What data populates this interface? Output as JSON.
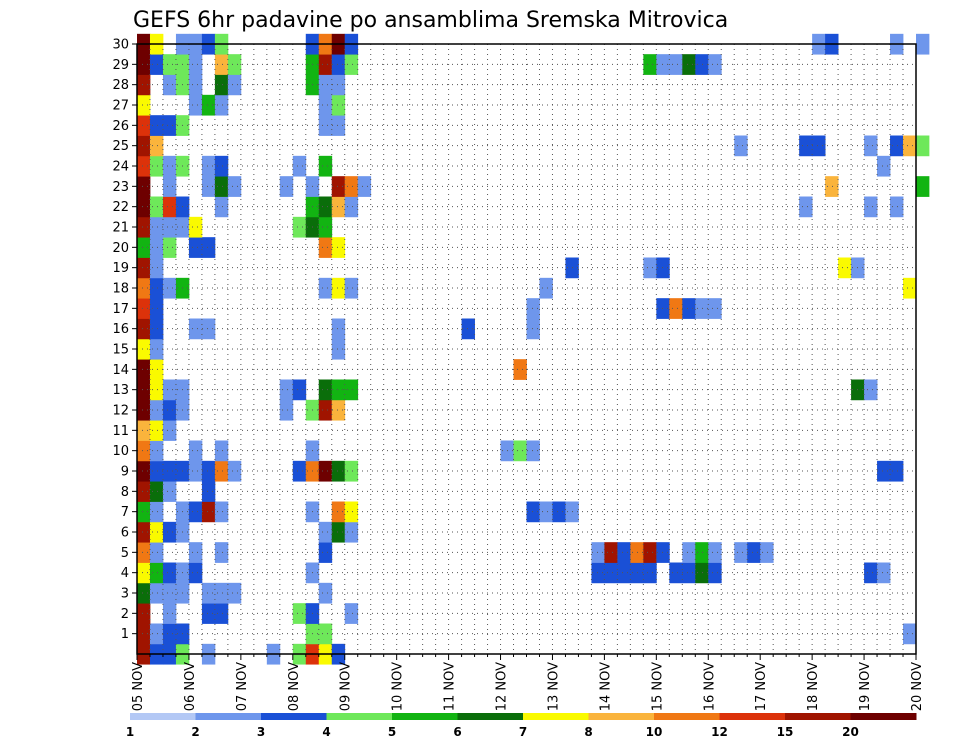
{
  "chart_data": {
    "type": "heatmap",
    "title": "GEFS 6hr padavine po ansamblima Sremska Mitrovica",
    "xlabel": "",
    "ylabel": "",
    "x_tick_labels": [
      "05 NOV",
      "06 NOV",
      "07 NOV",
      "08 NOV",
      "09 NOV",
      "10 NOV",
      "11 NOV",
      "12 NOV",
      "13 NOV",
      "14 NOV",
      "15 NOV",
      "16 NOV",
      "17 NOV",
      "18 NOV",
      "19 NOV",
      "20 NOV"
    ],
    "x_steps_per_day": 4,
    "y_tick_labels": [
      "1",
      "2",
      "3",
      "4",
      "5",
      "6",
      "7",
      "8",
      "9",
      "10",
      "11",
      "12",
      "13",
      "14",
      "15",
      "16",
      "17",
      "18",
      "19",
      "20",
      "21",
      "22",
      "23",
      "24",
      "25",
      "26",
      "27",
      "28",
      "29",
      "30"
    ],
    "ylim": [
      0,
      30
    ],
    "grid": true,
    "legend_placement": "bottom",
    "colors": [
      "#b3c8f5",
      "#6e96ec",
      "#1a50d6",
      "#6ee85a",
      "#12b412",
      "#0a6e0a",
      "#fafa00",
      "#fab43c",
      "#f07814",
      "#dc320a",
      "#a01400",
      "#6e0000"
    ],
    "legend_labels": [
      "1",
      "2",
      "3",
      "4",
      "5",
      "6",
      "7",
      "8",
      "10",
      "12",
      "15",
      "20"
    ],
    "cells": [
      [
        0,
        0,
        10
      ],
      [
        1,
        0,
        2
      ],
      [
        2,
        0,
        2
      ],
      [
        3,
        0,
        3
      ],
      [
        5,
        0,
        1
      ],
      [
        10,
        0,
        1
      ],
      [
        12,
        0,
        3
      ],
      [
        13,
        0,
        9
      ],
      [
        14,
        0,
        6
      ],
      [
        15,
        0,
        2
      ],
      [
        0,
        1,
        10
      ],
      [
        1,
        1,
        1
      ],
      [
        2,
        1,
        2
      ],
      [
        3,
        1,
        2
      ],
      [
        13,
        1,
        3
      ],
      [
        14,
        1,
        3
      ],
      [
        59,
        1,
        1
      ],
      [
        0,
        2,
        10
      ],
      [
        2,
        2,
        1
      ],
      [
        5,
        2,
        2
      ],
      [
        6,
        2,
        2
      ],
      [
        12,
        2,
        3
      ],
      [
        13,
        2,
        2
      ],
      [
        16,
        2,
        1
      ],
      [
        0,
        3,
        5
      ],
      [
        1,
        3,
        1
      ],
      [
        2,
        3,
        1
      ],
      [
        3,
        3,
        1
      ],
      [
        5,
        3,
        1
      ],
      [
        6,
        3,
        1
      ],
      [
        7,
        3,
        1
      ],
      [
        14,
        3,
        1
      ],
      [
        0,
        4,
        6
      ],
      [
        1,
        4,
        4
      ],
      [
        2,
        4,
        2
      ],
      [
        3,
        4,
        1
      ],
      [
        4,
        4,
        2
      ],
      [
        13,
        4,
        1
      ],
      [
        35,
        4,
        2
      ],
      [
        36,
        4,
        2
      ],
      [
        37,
        4,
        2
      ],
      [
        38,
        4,
        2
      ],
      [
        39,
        4,
        2
      ],
      [
        41,
        4,
        2
      ],
      [
        42,
        4,
        2
      ],
      [
        43,
        4,
        5
      ],
      [
        44,
        4,
        2
      ],
      [
        56,
        4,
        2
      ],
      [
        57,
        4,
        1
      ],
      [
        0,
        5,
        8
      ],
      [
        1,
        5,
        1
      ],
      [
        4,
        5,
        1
      ],
      [
        6,
        5,
        1
      ],
      [
        14,
        5,
        2
      ],
      [
        35,
        5,
        1
      ],
      [
        36,
        5,
        10
      ],
      [
        37,
        5,
        2
      ],
      [
        38,
        5,
        8
      ],
      [
        39,
        5,
        10
      ],
      [
        40,
        5,
        2
      ],
      [
        42,
        5,
        1
      ],
      [
        43,
        5,
        4
      ],
      [
        44,
        5,
        1
      ],
      [
        46,
        5,
        1
      ],
      [
        47,
        5,
        2
      ],
      [
        48,
        5,
        1
      ],
      [
        0,
        6,
        10
      ],
      [
        1,
        6,
        6
      ],
      [
        2,
        6,
        2
      ],
      [
        3,
        6,
        1
      ],
      [
        14,
        6,
        1
      ],
      [
        15,
        6,
        5
      ],
      [
        16,
        6,
        1
      ],
      [
        0,
        7,
        4
      ],
      [
        1,
        7,
        1
      ],
      [
        3,
        7,
        1
      ],
      [
        4,
        7,
        2
      ],
      [
        5,
        7,
        10
      ],
      [
        6,
        7,
        1
      ],
      [
        13,
        7,
        1
      ],
      [
        15,
        7,
        8
      ],
      [
        16,
        7,
        6
      ],
      [
        30,
        7,
        2
      ],
      [
        31,
        7,
        1
      ],
      [
        32,
        7,
        2
      ],
      [
        33,
        7,
        1
      ],
      [
        0,
        8,
        10
      ],
      [
        1,
        8,
        5
      ],
      [
        2,
        8,
        1
      ],
      [
        5,
        8,
        2
      ],
      [
        0,
        9,
        11
      ],
      [
        1,
        9,
        2
      ],
      [
        2,
        9,
        2
      ],
      [
        3,
        9,
        2
      ],
      [
        4,
        9,
        1
      ],
      [
        5,
        9,
        2
      ],
      [
        6,
        9,
        8
      ],
      [
        7,
        9,
        1
      ],
      [
        12,
        9,
        2
      ],
      [
        13,
        9,
        8
      ],
      [
        14,
        9,
        11
      ],
      [
        15,
        9,
        5
      ],
      [
        16,
        9,
        3
      ],
      [
        57,
        9,
        2
      ],
      [
        58,
        9,
        2
      ],
      [
        0,
        10,
        8
      ],
      [
        1,
        10,
        1
      ],
      [
        4,
        10,
        1
      ],
      [
        6,
        10,
        1
      ],
      [
        13,
        10,
        1
      ],
      [
        28,
        10,
        1
      ],
      [
        29,
        10,
        3
      ],
      [
        30,
        10,
        1
      ],
      [
        0,
        11,
        7
      ],
      [
        1,
        11,
        6
      ],
      [
        2,
        11,
        1
      ],
      [
        0,
        12,
        11
      ],
      [
        1,
        12,
        1
      ],
      [
        2,
        12,
        2
      ],
      [
        3,
        12,
        1
      ],
      [
        11,
        12,
        1
      ],
      [
        13,
        12,
        3
      ],
      [
        14,
        12,
        10
      ],
      [
        15,
        12,
        7
      ],
      [
        0,
        13,
        11
      ],
      [
        1,
        13,
        6
      ],
      [
        2,
        13,
        1
      ],
      [
        3,
        13,
        1
      ],
      [
        11,
        13,
        1
      ],
      [
        12,
        13,
        2
      ],
      [
        14,
        13,
        5
      ],
      [
        15,
        13,
        4
      ],
      [
        16,
        13,
        4
      ],
      [
        55,
        13,
        5
      ],
      [
        56,
        13,
        1
      ],
      [
        0,
        14,
        11
      ],
      [
        1,
        14,
        6
      ],
      [
        29,
        14,
        8
      ],
      [
        0,
        15,
        6
      ],
      [
        1,
        15,
        1
      ],
      [
        15,
        15,
        1
      ],
      [
        0,
        16,
        10
      ],
      [
        1,
        16,
        2
      ],
      [
        4,
        16,
        1
      ],
      [
        5,
        16,
        1
      ],
      [
        15,
        16,
        1
      ],
      [
        25,
        16,
        2
      ],
      [
        30,
        16,
        1
      ],
      [
        0,
        17,
        9
      ],
      [
        1,
        17,
        2
      ],
      [
        30,
        17,
        1
      ],
      [
        40,
        17,
        2
      ],
      [
        41,
        17,
        8
      ],
      [
        42,
        17,
        2
      ],
      [
        43,
        17,
        1
      ],
      [
        44,
        17,
        1
      ],
      [
        0,
        18,
        8
      ],
      [
        1,
        18,
        2
      ],
      [
        2,
        18,
        1
      ],
      [
        3,
        18,
        4
      ],
      [
        14,
        18,
        1
      ],
      [
        15,
        18,
        6
      ],
      [
        16,
        18,
        1
      ],
      [
        31,
        18,
        1
      ],
      [
        59,
        18,
        6
      ],
      [
        0,
        19,
        10
      ],
      [
        1,
        19,
        1
      ],
      [
        33,
        19,
        2
      ],
      [
        39,
        19,
        1
      ],
      [
        40,
        19,
        2
      ],
      [
        54,
        19,
        6
      ],
      [
        55,
        19,
        1
      ],
      [
        0,
        20,
        4
      ],
      [
        1,
        20,
        1
      ],
      [
        2,
        20,
        3
      ],
      [
        4,
        20,
        2
      ],
      [
        5,
        20,
        2
      ],
      [
        14,
        20,
        8
      ],
      [
        15,
        20,
        6
      ],
      [
        0,
        21,
        10
      ],
      [
        1,
        21,
        1
      ],
      [
        2,
        21,
        1
      ],
      [
        3,
        21,
        1
      ],
      [
        4,
        21,
        6
      ],
      [
        12,
        21,
        3
      ],
      [
        13,
        21,
        5
      ],
      [
        14,
        21,
        4
      ],
      [
        0,
        22,
        11
      ],
      [
        1,
        22,
        3
      ],
      [
        2,
        22,
        9
      ],
      [
        3,
        22,
        2
      ],
      [
        6,
        22,
        1
      ],
      [
        13,
        22,
        4
      ],
      [
        14,
        22,
        5
      ],
      [
        15,
        22,
        7
      ],
      [
        16,
        22,
        1
      ],
      [
        51,
        22,
        1
      ],
      [
        56,
        22,
        1
      ],
      [
        58,
        22,
        1
      ],
      [
        0,
        23,
        11
      ],
      [
        2,
        23,
        1
      ],
      [
        5,
        23,
        1
      ],
      [
        6,
        23,
        5
      ],
      [
        7,
        23,
        1
      ],
      [
        11,
        23,
        1
      ],
      [
        13,
        23,
        1
      ],
      [
        15,
        23,
        10
      ],
      [
        16,
        23,
        8
      ],
      [
        17,
        23,
        1
      ],
      [
        53,
        23,
        7
      ],
      [
        60,
        23,
        4
      ],
      [
        0,
        24,
        9
      ],
      [
        1,
        24,
        3
      ],
      [
        2,
        24,
        1
      ],
      [
        3,
        24,
        3
      ],
      [
        5,
        24,
        1
      ],
      [
        6,
        24,
        2
      ],
      [
        12,
        24,
        1
      ],
      [
        14,
        24,
        4
      ],
      [
        57,
        24,
        1
      ],
      [
        0,
        25,
        10
      ],
      [
        1,
        25,
        7
      ],
      [
        46,
        25,
        1
      ],
      [
        51,
        25,
        2
      ],
      [
        52,
        25,
        2
      ],
      [
        56,
        25,
        1
      ],
      [
        58,
        25,
        2
      ],
      [
        59,
        25,
        7
      ],
      [
        60,
        25,
        3
      ],
      [
        0,
        26,
        9
      ],
      [
        1,
        26,
        2
      ],
      [
        2,
        26,
        2
      ],
      [
        3,
        26,
        3
      ],
      [
        14,
        26,
        1
      ],
      [
        15,
        26,
        1
      ],
      [
        0,
        27,
        6
      ],
      [
        4,
        27,
        1
      ],
      [
        5,
        27,
        4
      ],
      [
        6,
        27,
        1
      ],
      [
        14,
        27,
        1
      ],
      [
        15,
        27,
        3
      ],
      [
        0,
        28,
        10
      ],
      [
        2,
        28,
        1
      ],
      [
        3,
        28,
        3
      ],
      [
        4,
        28,
        1
      ],
      [
        6,
        28,
        5
      ],
      [
        7,
        28,
        1
      ],
      [
        13,
        28,
        4
      ],
      [
        14,
        28,
        1
      ],
      [
        15,
        28,
        1
      ],
      [
        0,
        29,
        11
      ],
      [
        1,
        29,
        2
      ],
      [
        2,
        29,
        3
      ],
      [
        3,
        29,
        3
      ],
      [
        4,
        29,
        1
      ],
      [
        6,
        29,
        7
      ],
      [
        7,
        29,
        3
      ],
      [
        13,
        29,
        4
      ],
      [
        14,
        29,
        10
      ],
      [
        15,
        29,
        2
      ],
      [
        16,
        29,
        3
      ],
      [
        39,
        29,
        4
      ],
      [
        40,
        29,
        1
      ],
      [
        41,
        29,
        1
      ],
      [
        42,
        29,
        5
      ],
      [
        43,
        29,
        2
      ],
      [
        44,
        29,
        1
      ],
      [
        0,
        30,
        11
      ],
      [
        1,
        30,
        6
      ],
      [
        3,
        30,
        1
      ],
      [
        4,
        30,
        1
      ],
      [
        5,
        30,
        2
      ],
      [
        6,
        30,
        3
      ],
      [
        13,
        30,
        2
      ],
      [
        14,
        30,
        8
      ],
      [
        15,
        30,
        11
      ],
      [
        16,
        30,
        2
      ],
      [
        52,
        30,
        1
      ],
      [
        53,
        30,
        2
      ],
      [
        58,
        30,
        1
      ],
      [
        60,
        30,
        1
      ]
    ]
  }
}
